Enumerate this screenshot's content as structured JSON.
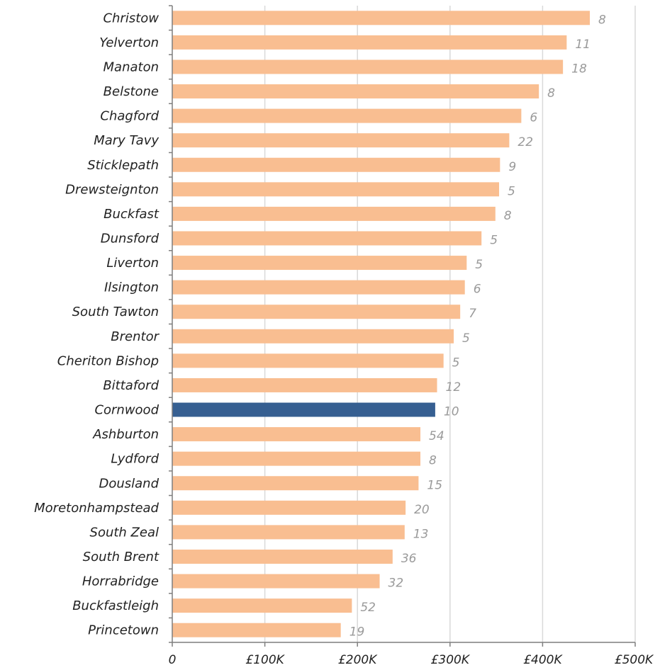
{
  "chart_data": {
    "type": "bar",
    "orientation": "horizontal",
    "title": "",
    "xlabel": "",
    "ylabel": "",
    "xlim": [
      0,
      500000
    ],
    "grid": true,
    "legend": "none",
    "tick_values": [
      0,
      100000,
      200000,
      300000,
      400000,
      500000
    ],
    "tick_labels": [
      "0",
      "£100K",
      "£200K",
      "£300K",
      "£400K",
      "£500K"
    ],
    "colors": {
      "bar": "#F9BE91",
      "highlight": "#365F91",
      "grid": "#D9D9D9",
      "axis": "#7F7F7F",
      "data_label": "#9A9A9A"
    },
    "highlight_category": "Cornwood",
    "categories": [
      "Christow",
      "Yelverton",
      "Manaton",
      "Belstone",
      "Chagford",
      "Mary Tavy",
      "Sticklepath",
      "Drewsteignton",
      "Buckfast",
      "Dunsford",
      "Liverton",
      "Ilsington",
      "South Tawton",
      "Brentor",
      "Cheriton Bishop",
      "Bittaford",
      "Cornwood",
      "Ashburton",
      "Lydford",
      "Dousland",
      "Moretonhampstead",
      "South Zeal",
      "South Brent",
      "Horrabridge",
      "Buckfastleigh",
      "Princetown"
    ],
    "values": [
      451000,
      426000,
      422000,
      396000,
      377000,
      364000,
      354000,
      353000,
      349000,
      334000,
      318000,
      316000,
      311000,
      304000,
      293000,
      286000,
      284000,
      268000,
      268000,
      266000,
      252000,
      251000,
      238000,
      224000,
      194000,
      182000
    ],
    "data_labels": [
      "8",
      "11",
      "18",
      "8",
      "6",
      "22",
      "9",
      "5",
      "8",
      "5",
      "5",
      "6",
      "7",
      "5",
      "5",
      "12",
      "10",
      "54",
      "8",
      "15",
      "20",
      "13",
      "36",
      "32",
      "52",
      "19"
    ]
  }
}
